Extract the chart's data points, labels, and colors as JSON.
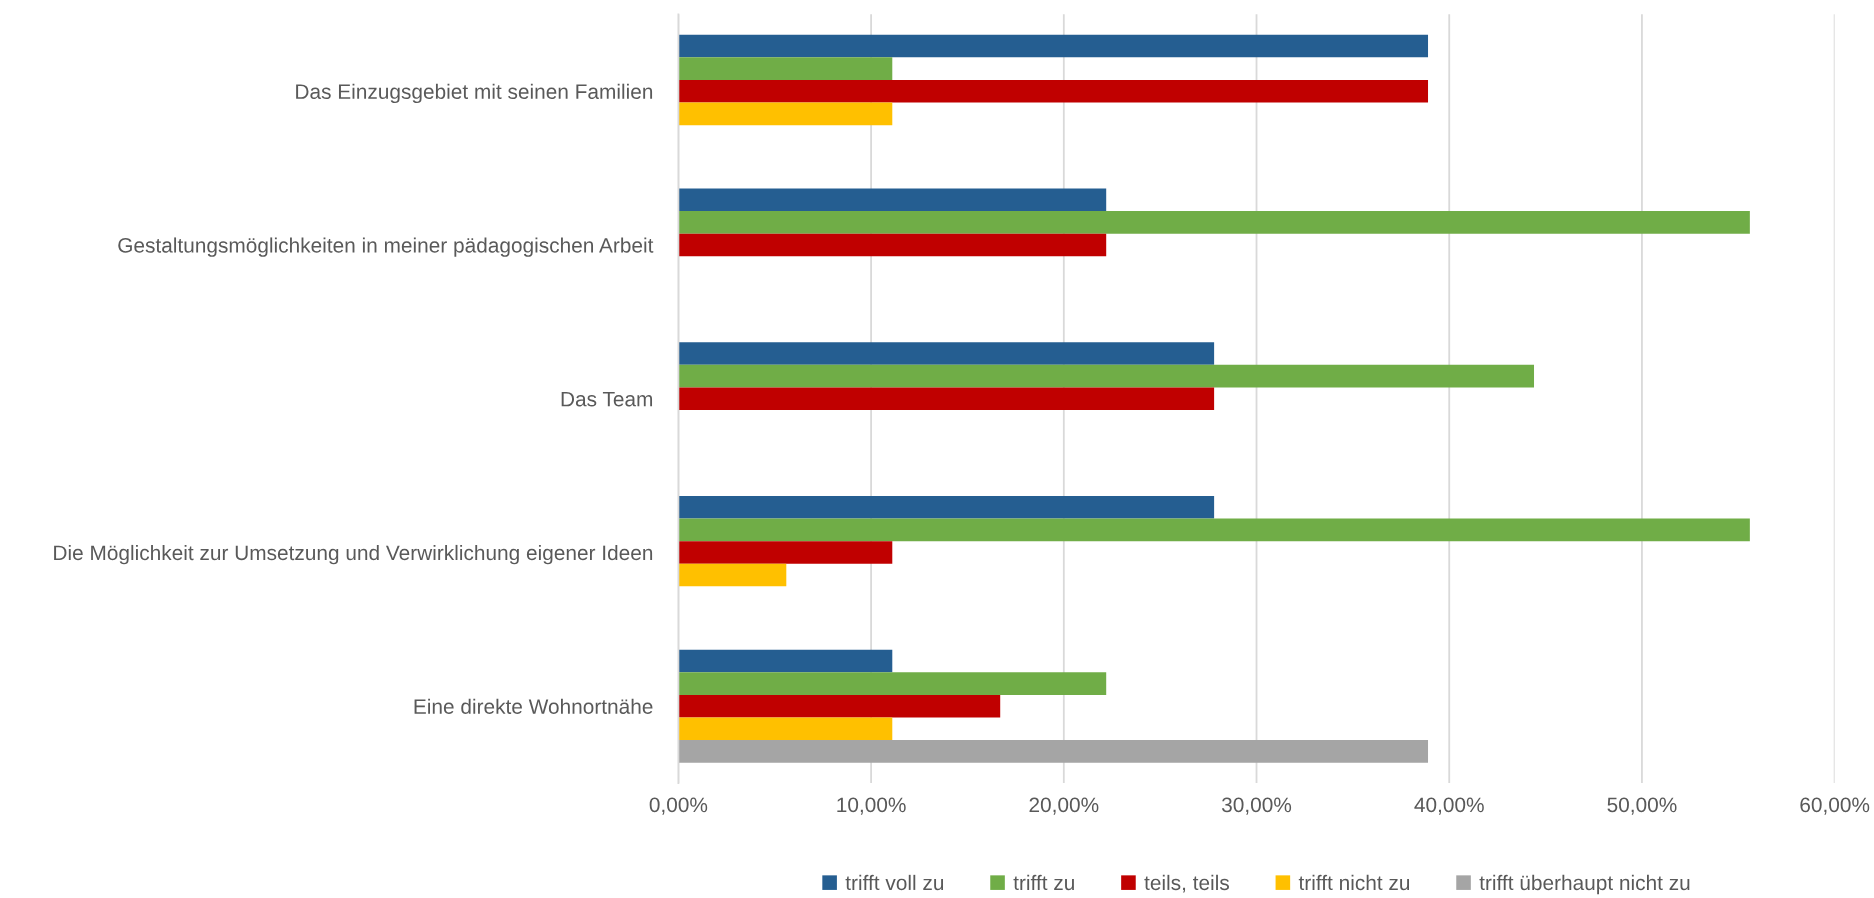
{
  "chart_data": {
    "type": "bar",
    "orientation": "horizontal",
    "categories": [
      "Das Einzugsgebiet mit seinen Familien",
      "Gestaltungsmöglichkeiten in meiner pädagogischen Arbeit",
      "Das Team",
      "Die Möglichkeit zur Umsetzung und Verwirklichung eigener Ideen",
      "Eine direkte Wohnortnähe"
    ],
    "series": [
      {
        "name": "trifft voll zu",
        "color": "#255e91",
        "values": [
          38.9,
          22.2,
          27.8,
          27.8,
          11.1
        ]
      },
      {
        "name": "trifft zu",
        "color": "#70ad47",
        "values": [
          11.1,
          55.6,
          44.4,
          55.6,
          22.2
        ]
      },
      {
        "name": "teils, teils",
        "color": "#c00000",
        "values": [
          38.9,
          22.2,
          27.8,
          11.1,
          16.7
        ]
      },
      {
        "name": "trifft nicht zu",
        "color": "#ffc000",
        "values": [
          11.1,
          null,
          null,
          5.6,
          11.1
        ]
      },
      {
        "name": "trifft überhaupt nicht zu",
        "color": "#a5a5a5",
        "values": [
          null,
          null,
          null,
          null,
          38.9
        ]
      }
    ],
    "xlim": [
      0,
      60
    ],
    "xticks": [
      {
        "value": 0,
        "label": "0,00%"
      },
      {
        "value": 10,
        "label": "10,00%"
      },
      {
        "value": 20,
        "label": "20,00%"
      },
      {
        "value": 30,
        "label": "30,00%"
      },
      {
        "value": 40,
        "label": "40,00%"
      },
      {
        "value": 50,
        "label": "50,00%"
      },
      {
        "value": 60,
        "label": "60,00%"
      }
    ],
    "grid": "x",
    "legend": "bottom"
  }
}
